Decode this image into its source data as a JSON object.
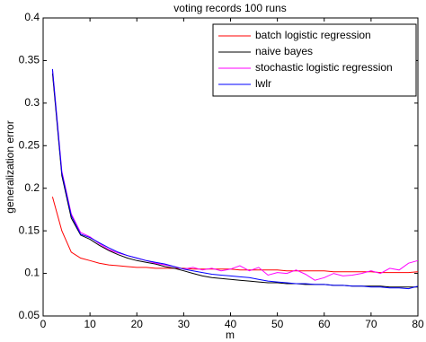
{
  "chart_data": {
    "type": "line",
    "title": "voting records 100 runs",
    "x_label": "m",
    "y_label": "generalization error",
    "x": [
      2,
      4,
      6,
      8,
      10,
      12,
      14,
      16,
      18,
      20,
      22,
      24,
      26,
      28,
      30,
      32,
      34,
      36,
      38,
      40,
      42,
      44,
      46,
      48,
      50,
      52,
      54,
      56,
      58,
      60,
      62,
      64,
      66,
      68,
      70,
      72,
      74,
      76,
      78,
      80
    ],
    "series": [
      {
        "name": "batch logistic regression",
        "color": "#ff0000",
        "values": [
          0.19,
          0.15,
          0.125,
          0.118,
          0.115,
          0.112,
          0.11,
          0.109,
          0.108,
          0.107,
          0.107,
          0.106,
          0.106,
          0.106,
          0.106,
          0.105,
          0.105,
          0.105,
          0.105,
          0.105,
          0.104,
          0.104,
          0.104,
          0.104,
          0.104,
          0.103,
          0.103,
          0.103,
          0.103,
          0.103,
          0.102,
          0.102,
          0.102,
          0.102,
          0.102,
          0.101,
          0.101,
          0.101,
          0.101,
          0.102
        ]
      },
      {
        "name": "naive bayes",
        "color": "#000000",
        "values": [
          0.335,
          0.215,
          0.165,
          0.145,
          0.14,
          0.133,
          0.127,
          0.122,
          0.118,
          0.115,
          0.113,
          0.111,
          0.108,
          0.106,
          0.103,
          0.1,
          0.097,
          0.095,
          0.094,
          0.093,
          0.092,
          0.091,
          0.09,
          0.089,
          0.089,
          0.088,
          0.088,
          0.087,
          0.087,
          0.087,
          0.086,
          0.086,
          0.085,
          0.085,
          0.085,
          0.085,
          0.084,
          0.084,
          0.084,
          0.084
        ]
      },
      {
        "name": "stochastic logistic regression",
        "color": "#ff00ff",
        "values": [
          0.34,
          0.22,
          0.17,
          0.148,
          0.143,
          0.135,
          0.128,
          0.124,
          0.121,
          0.118,
          0.115,
          0.112,
          0.11,
          0.108,
          0.105,
          0.107,
          0.104,
          0.106,
          0.103,
          0.105,
          0.109,
          0.103,
          0.107,
          0.098,
          0.101,
          0.1,
          0.104,
          0.099,
          0.092,
          0.095,
          0.1,
          0.097,
          0.098,
          0.1,
          0.103,
          0.1,
          0.106,
          0.104,
          0.112,
          0.115
        ]
      },
      {
        "name": "lwlr",
        "color": "#0000ff",
        "values": [
          0.34,
          0.218,
          0.168,
          0.146,
          0.142,
          0.136,
          0.13,
          0.125,
          0.121,
          0.118,
          0.115,
          0.113,
          0.111,
          0.108,
          0.105,
          0.103,
          0.101,
          0.099,
          0.098,
          0.097,
          0.096,
          0.095,
          0.093,
          0.091,
          0.09,
          0.089,
          0.088,
          0.088,
          0.087,
          0.087,
          0.086,
          0.086,
          0.085,
          0.085,
          0.084,
          0.084,
          0.083,
          0.083,
          0.082,
          0.085
        ]
      }
    ],
    "xlim": [
      0,
      80
    ],
    "xticks": [
      0,
      10,
      20,
      30,
      40,
      50,
      60,
      70,
      80
    ],
    "ylim": [
      0.05,
      0.4
    ],
    "yticks": [
      0.05,
      0.1,
      0.15,
      0.2,
      0.25,
      0.3,
      0.35,
      0.4
    ],
    "grid": false,
    "legend": "upper right"
  }
}
